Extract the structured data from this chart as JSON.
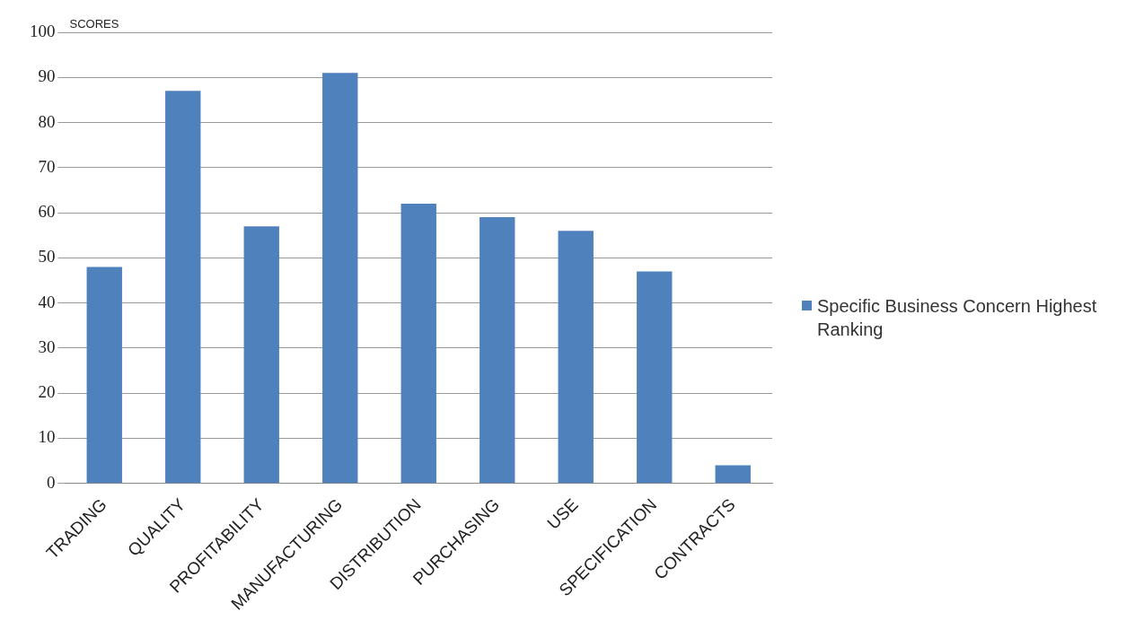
{
  "chart_data": {
    "type": "bar",
    "ylabel": "SCORES",
    "categories": [
      "TRADING",
      "QUALITY",
      "PROFITABILITY",
      "MANUFACTURING",
      "DISTRIBUTION",
      "PURCHASING",
      "USE",
      "SPECIFICATION",
      "CONTRACTS"
    ],
    "series": [
      {
        "name": "Specific Business Concern Highest Ranking",
        "color": "#4f81bd",
        "values": [
          48,
          87,
          57,
          91,
          62,
          59,
          56,
          47,
          4
        ]
      }
    ],
    "ylim": [
      0,
      100
    ],
    "yticks": [
      0,
      10,
      20,
      30,
      40,
      50,
      60,
      70,
      80,
      90,
      100
    ],
    "grid": "y",
    "legend": "right"
  }
}
